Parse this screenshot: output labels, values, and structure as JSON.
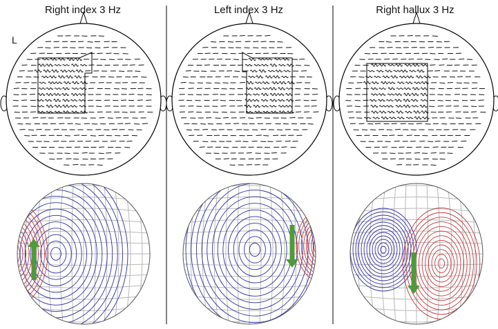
{
  "panels": [
    {
      "title": "Right index 3 Hz",
      "dipole_direction": "up",
      "box": "left-center"
    },
    {
      "title": "Left index 3 Hz",
      "dipole_direction": "down",
      "box": "center-right"
    },
    {
      "title": "Right hallux 3 Hz",
      "dipole_direction": "down",
      "box": "midline"
    }
  ],
  "side_label": "L",
  "colors": {
    "head_outline": "#000000",
    "trace": "#111111",
    "negative_contour": "#2b2fa3",
    "positive_contour": "#c0363a",
    "grid": "#b8b8b8",
    "dipole_arrow": "#4f9a3a",
    "divider": "#000000"
  }
}
